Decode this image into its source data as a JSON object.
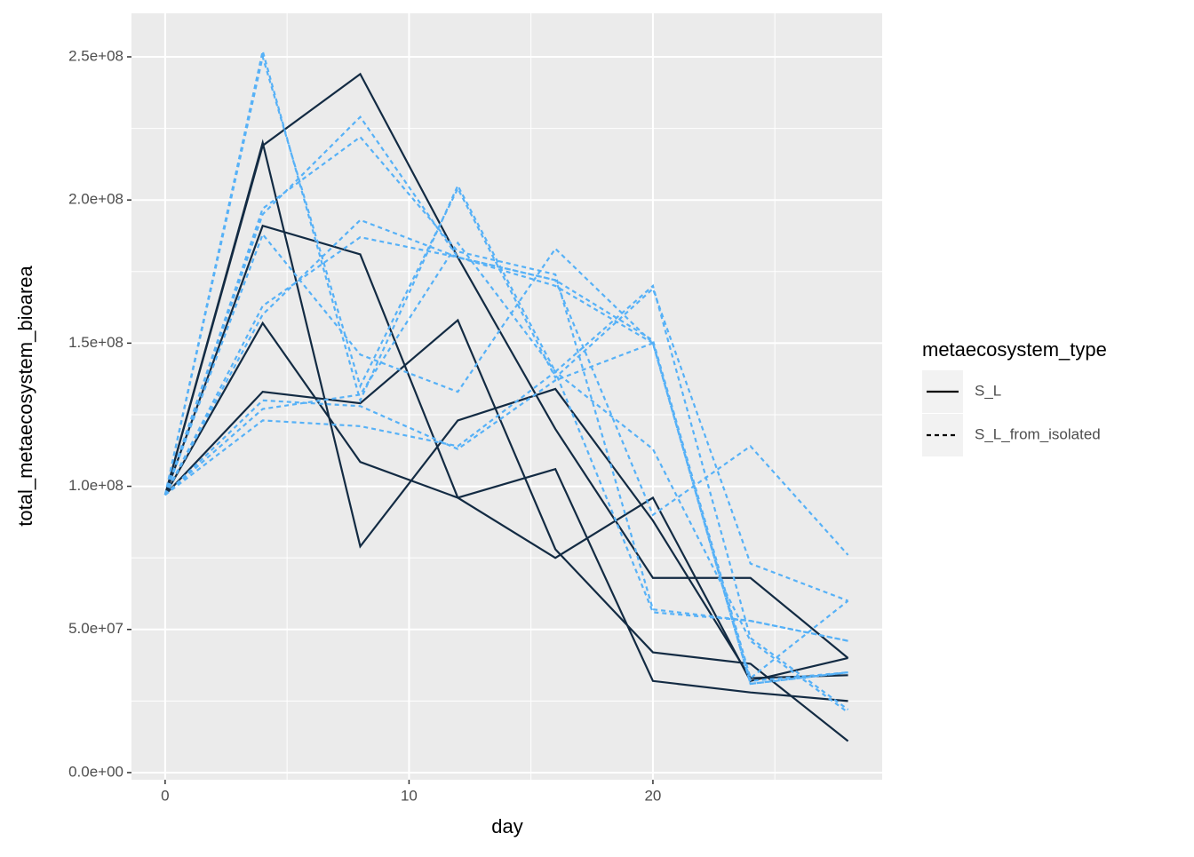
{
  "chart_data": {
    "type": "line",
    "x_label": "day",
    "y_label": "total_metaecosystem_bioarea",
    "x": [
      0,
      4,
      8,
      12,
      16,
      20,
      24,
      28
    ],
    "xlim": [
      -1.38,
      29.4
    ],
    "xticks": [
      0,
      10,
      20
    ],
    "ylim": [
      -2500000,
      265200000
    ],
    "yticks": [
      {
        "value": 0,
        "label": "0.0e+00"
      },
      {
        "value": 50000000,
        "label": "5.0e+07"
      },
      {
        "value": 100000000,
        "label": "1.0e+08"
      },
      {
        "value": 150000000,
        "label": "1.5e+08"
      },
      {
        "value": 200000000,
        "label": "2.0e+08"
      },
      {
        "value": 250000000,
        "label": "2.5e+08"
      }
    ],
    "grid": true,
    "legend": {
      "title": "metaecosystem_type",
      "position": "right",
      "entries": [
        {
          "label": "S_L",
          "linetype": "solid",
          "color": "#000000"
        },
        {
          "label": "S_L_from_isolated",
          "linetype": "dashed",
          "color": "#000000"
        }
      ]
    },
    "series": [
      {
        "linetype": "solid",
        "color": "#132B43",
        "values": [
          97000000,
          219000000,
          244000000,
          180000000,
          120000000,
          68000000,
          68000000,
          40000000
        ]
      },
      {
        "linetype": "solid",
        "color": "#132B43",
        "values": [
          97000000,
          220000000,
          79000000,
          123000000,
          134000000,
          88000000,
          33000000,
          34000000
        ]
      },
      {
        "linetype": "solid",
        "color": "#132B43",
        "values": [
          97000000,
          191000000,
          181000000,
          96000000,
          75000000,
          96000000,
          32000000,
          40000000
        ]
      },
      {
        "linetype": "solid",
        "color": "#132B43",
        "values": [
          97000000,
          157000000,
          108500000,
          96000000,
          106000000,
          32000000,
          28000000,
          25000000
        ]
      },
      {
        "linetype": "solid",
        "color": "#132B43",
        "values": [
          97000000,
          133000000,
          129000000,
          158000000,
          78000000,
          42000000,
          38000000,
          11000000
        ]
      },
      {
        "linetype": "dashed",
        "color": "#56B1F7",
        "values": [
          97000000,
          252000000,
          130000000,
          205000000,
          140000000,
          170000000,
          47000000,
          22000000
        ]
      },
      {
        "linetype": "dashed",
        "color": "#56B1F7",
        "values": [
          97000000,
          250000000,
          135000000,
          204000000,
          138000000,
          169000000,
          73000000,
          60000000
        ]
      },
      {
        "linetype": "dashed",
        "color": "#56B1F7",
        "values": [
          97000000,
          195000000,
          229000000,
          180000000,
          172000000,
          90000000,
          114000000,
          76000000
        ]
      },
      {
        "linetype": "dashed",
        "color": "#56B1F7",
        "values": [
          97000000,
          197000000,
          222000000,
          182000000,
          174000000,
          57000000,
          53000000,
          46000000
        ]
      },
      {
        "linetype": "dashed",
        "color": "#56B1F7",
        "values": [
          97000000,
          188000000,
          146000000,
          133000000,
          183000000,
          150000000,
          31000000,
          35000000
        ]
      },
      {
        "linetype": "dashed",
        "color": "#56B1F7",
        "values": [
          97000000,
          160000000,
          193000000,
          180000000,
          170000000,
          150000000,
          32000000,
          35000000
        ]
      },
      {
        "linetype": "dashed",
        "color": "#56B1F7",
        "values": [
          97000000,
          163000000,
          187000000,
          180000000,
          172000000,
          151000000,
          33000000,
          60000000
        ]
      },
      {
        "linetype": "dashed",
        "color": "#56B1F7",
        "values": [
          97000000,
          130000000,
          128000000,
          113000000,
          137000000,
          150000000,
          31000000,
          35000000
        ]
      },
      {
        "linetype": "dashed",
        "color": "#56B1F7",
        "values": [
          97000000,
          123000000,
          121000000,
          114000000,
          140000000,
          56000000,
          53000000,
          46000000
        ]
      },
      {
        "linetype": "dashed",
        "color": "#56B1F7",
        "values": [
          97000000,
          127000000,
          132000000,
          185000000,
          140000000,
          113000000,
          46000000,
          21000000
        ]
      }
    ]
  }
}
